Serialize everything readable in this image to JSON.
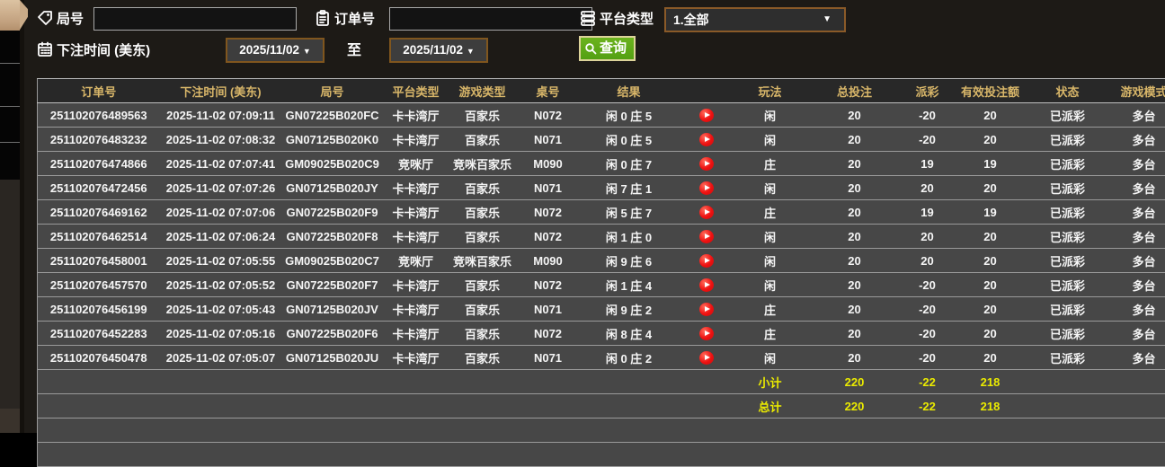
{
  "filters": {
    "round_label": "局号",
    "round_value": "",
    "order_label": "订单号",
    "order_value": "",
    "platform_label": "平台类型",
    "platform_value": "1.全部",
    "bet_time_label": "下注时间 (美东)",
    "date_from": "2025/11/02",
    "to_label": "至",
    "date_to": "2025/11/02",
    "search_label": "查询"
  },
  "colors": {
    "accent_gold": "#d8b669",
    "win_red": "#dd2f2f",
    "lose_green": "#3ce03c",
    "status_green": "#2ced2c",
    "summary_yellow": "#ebeb00",
    "button_green": "#5aa315",
    "border_brown": "#8a5a28"
  },
  "table": {
    "columns": [
      {
        "key": "order",
        "label": "订单号"
      },
      {
        "key": "time",
        "label": "下注时间 (美东)"
      },
      {
        "key": "round",
        "label": "局号"
      },
      {
        "key": "platform",
        "label": "平台类型"
      },
      {
        "key": "game",
        "label": "游戏类型"
      },
      {
        "key": "table_no",
        "label": "桌号"
      },
      {
        "key": "result",
        "label": "结果"
      },
      {
        "key": "play",
        "label": ""
      },
      {
        "key": "bet_type",
        "label": "玩法"
      },
      {
        "key": "total_bet",
        "label": "总投注"
      },
      {
        "key": "payout",
        "label": "派彩"
      },
      {
        "key": "valid_bet",
        "label": "有效投注额"
      },
      {
        "key": "status",
        "label": "状态"
      },
      {
        "key": "mode",
        "label": "游戏模式"
      }
    ],
    "rows": [
      {
        "order": "251102076489563",
        "time": "2025-11-02 07:09:11",
        "round": "GN07225B020FC",
        "platform": "卡卡湾厅",
        "game": "百家乐",
        "table_no": "N072",
        "result": "闲 0 庄 5",
        "bet_type": "闲",
        "total_bet": "20",
        "payout": "-20",
        "valid_bet": "20",
        "status": "已派彩",
        "mode": "多台"
      },
      {
        "order": "251102076483232",
        "time": "2025-11-02 07:08:32",
        "round": "GN07125B020K0",
        "platform": "卡卡湾厅",
        "game": "百家乐",
        "table_no": "N071",
        "result": "闲 0 庄 5",
        "bet_type": "闲",
        "total_bet": "20",
        "payout": "-20",
        "valid_bet": "20",
        "status": "已派彩",
        "mode": "多台"
      },
      {
        "order": "251102076474866",
        "time": "2025-11-02 07:07:41",
        "round": "GM09025B020C9",
        "platform": "竞咪厅",
        "game": "竞咪百家乐",
        "table_no": "M090",
        "result": "闲 0 庄 7",
        "bet_type": "庄",
        "total_bet": "20",
        "payout": "19",
        "valid_bet": "19",
        "status": "已派彩",
        "mode": "多台"
      },
      {
        "order": "251102076472456",
        "time": "2025-11-02 07:07:26",
        "round": "GN07125B020JY",
        "platform": "卡卡湾厅",
        "game": "百家乐",
        "table_no": "N071",
        "result": "闲 7 庄 1",
        "bet_type": "闲",
        "total_bet": "20",
        "payout": "20",
        "valid_bet": "20",
        "status": "已派彩",
        "mode": "多台"
      },
      {
        "order": "251102076469162",
        "time": "2025-11-02 07:07:06",
        "round": "GN07225B020F9",
        "platform": "卡卡湾厅",
        "game": "百家乐",
        "table_no": "N072",
        "result": "闲 5 庄 7",
        "bet_type": "庄",
        "total_bet": "20",
        "payout": "19",
        "valid_bet": "19",
        "status": "已派彩",
        "mode": "多台"
      },
      {
        "order": "251102076462514",
        "time": "2025-11-02 07:06:24",
        "round": "GN07225B020F8",
        "platform": "卡卡湾厅",
        "game": "百家乐",
        "table_no": "N072",
        "result": "闲 1 庄 0",
        "bet_type": "闲",
        "total_bet": "20",
        "payout": "20",
        "valid_bet": "20",
        "status": "已派彩",
        "mode": "多台"
      },
      {
        "order": "251102076458001",
        "time": "2025-11-02 07:05:55",
        "round": "GM09025B020C7",
        "platform": "竞咪厅",
        "game": "竞咪百家乐",
        "table_no": "M090",
        "result": "闲 9 庄 6",
        "bet_type": "闲",
        "total_bet": "20",
        "payout": "20",
        "valid_bet": "20",
        "status": "已派彩",
        "mode": "多台"
      },
      {
        "order": "251102076457570",
        "time": "2025-11-02 07:05:52",
        "round": "GN07225B020F7",
        "platform": "卡卡湾厅",
        "game": "百家乐",
        "table_no": "N072",
        "result": "闲 1 庄 4",
        "bet_type": "闲",
        "total_bet": "20",
        "payout": "-20",
        "valid_bet": "20",
        "status": "已派彩",
        "mode": "多台"
      },
      {
        "order": "251102076456199",
        "time": "2025-11-02 07:05:43",
        "round": "GN07125B020JV",
        "platform": "卡卡湾厅",
        "game": "百家乐",
        "table_no": "N071",
        "result": "闲 9 庄 2",
        "bet_type": "庄",
        "total_bet": "20",
        "payout": "-20",
        "valid_bet": "20",
        "status": "已派彩",
        "mode": "多台"
      },
      {
        "order": "251102076452283",
        "time": "2025-11-02 07:05:16",
        "round": "GN07225B020F6",
        "platform": "卡卡湾厅",
        "game": "百家乐",
        "table_no": "N072",
        "result": "闲 8 庄 4",
        "bet_type": "庄",
        "total_bet": "20",
        "payout": "-20",
        "valid_bet": "20",
        "status": "已派彩",
        "mode": "多台"
      },
      {
        "order": "251102076450478",
        "time": "2025-11-02 07:05:07",
        "round": "GN07125B020JU",
        "platform": "卡卡湾厅",
        "game": "百家乐",
        "table_no": "N071",
        "result": "闲 0 庄 2",
        "bet_type": "闲",
        "total_bet": "20",
        "payout": "-20",
        "valid_bet": "20",
        "status": "已派彩",
        "mode": "多台"
      }
    ],
    "summary_rows": [
      {
        "label": "小计",
        "total_bet": "220",
        "payout": "-22",
        "valid_bet": "218"
      },
      {
        "label": "总计",
        "total_bet": "220",
        "payout": "-22",
        "valid_bet": "218"
      }
    ]
  }
}
